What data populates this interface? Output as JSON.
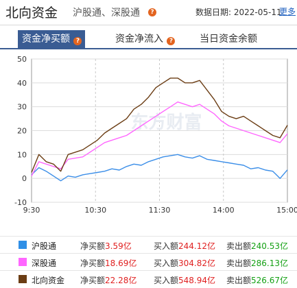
{
  "header": {
    "title": "北向资金",
    "subtitle": "沪股通、深股通",
    "date_label": "数据日期: 2022-05-11",
    "more": "更多",
    "help": "?"
  },
  "tabs": [
    {
      "label": "资金净买额",
      "active": true
    },
    {
      "label": "资金净流入",
      "active": false
    },
    {
      "label": "当日资金余额",
      "active": false
    }
  ],
  "chart_data": {
    "type": "line",
    "xlabel": "",
    "ylabel": "",
    "ylim": [
      -10,
      50
    ],
    "yticks": [
      50,
      40,
      30,
      20,
      10,
      0,
      -10
    ],
    "xticks": [
      "9:30",
      "10:30",
      "11:30",
      "14:00",
      "15:00"
    ],
    "grid": true,
    "watermark": "东方财富",
    "series": [
      {
        "name": "沪股通",
        "color": "#3b8ee8",
        "values": [
          1.5,
          4.5,
          3,
          1,
          -1,
          1,
          0.5,
          1.5,
          2,
          2.5,
          3,
          4,
          3.5,
          5,
          6,
          5.5,
          7,
          8,
          9,
          9.5,
          10,
          9,
          8.5,
          9.5,
          8,
          7.5,
          7,
          6.5,
          6,
          5.5,
          4,
          4.5,
          3.5,
          3,
          0,
          3.59
        ]
      },
      {
        "name": "深股通",
        "color": "#ff66ff",
        "values": [
          1,
          7,
          6,
          5,
          4,
          8,
          8.5,
          9,
          11,
          13,
          15,
          16,
          17,
          18,
          20,
          22,
          24,
          26,
          28,
          30,
          32,
          31,
          30,
          31,
          29,
          27,
          24,
          22,
          21,
          20,
          19,
          18,
          17,
          16,
          15,
          18.69
        ]
      },
      {
        "name": "北向资金",
        "color": "#6b3d14",
        "values": [
          2.5,
          10,
          7,
          6,
          3,
          10,
          11,
          12,
          14,
          16,
          19,
          21,
          23,
          25,
          29,
          31,
          34,
          38,
          40,
          42,
          42,
          40,
          40,
          41,
          37,
          33,
          28,
          26,
          25,
          26,
          24,
          22,
          20,
          18,
          17,
          22.28
        ]
      }
    ]
  },
  "legend": [
    {
      "name": "沪股通",
      "color": "#2f8fe6",
      "net_label": "净买额",
      "net": "3.59亿",
      "buy_label": "买入额",
      "buy": "244.12亿",
      "sell_label": "卖出额",
      "sell": "240.53亿"
    },
    {
      "name": "深股通",
      "color": "#ff66ff",
      "net_label": "净买额",
      "net": "18.69亿",
      "buy_label": "买入额",
      "buy": "304.82亿",
      "sell_label": "卖出额",
      "sell": "286.13亿"
    },
    {
      "name": "北向资金",
      "color": "#6b3d14",
      "net_label": "净买额",
      "net": "22.28亿",
      "buy_label": "买入额",
      "buy": "548.94亿",
      "sell_label": "卖出额",
      "sell": "526.67亿"
    }
  ]
}
